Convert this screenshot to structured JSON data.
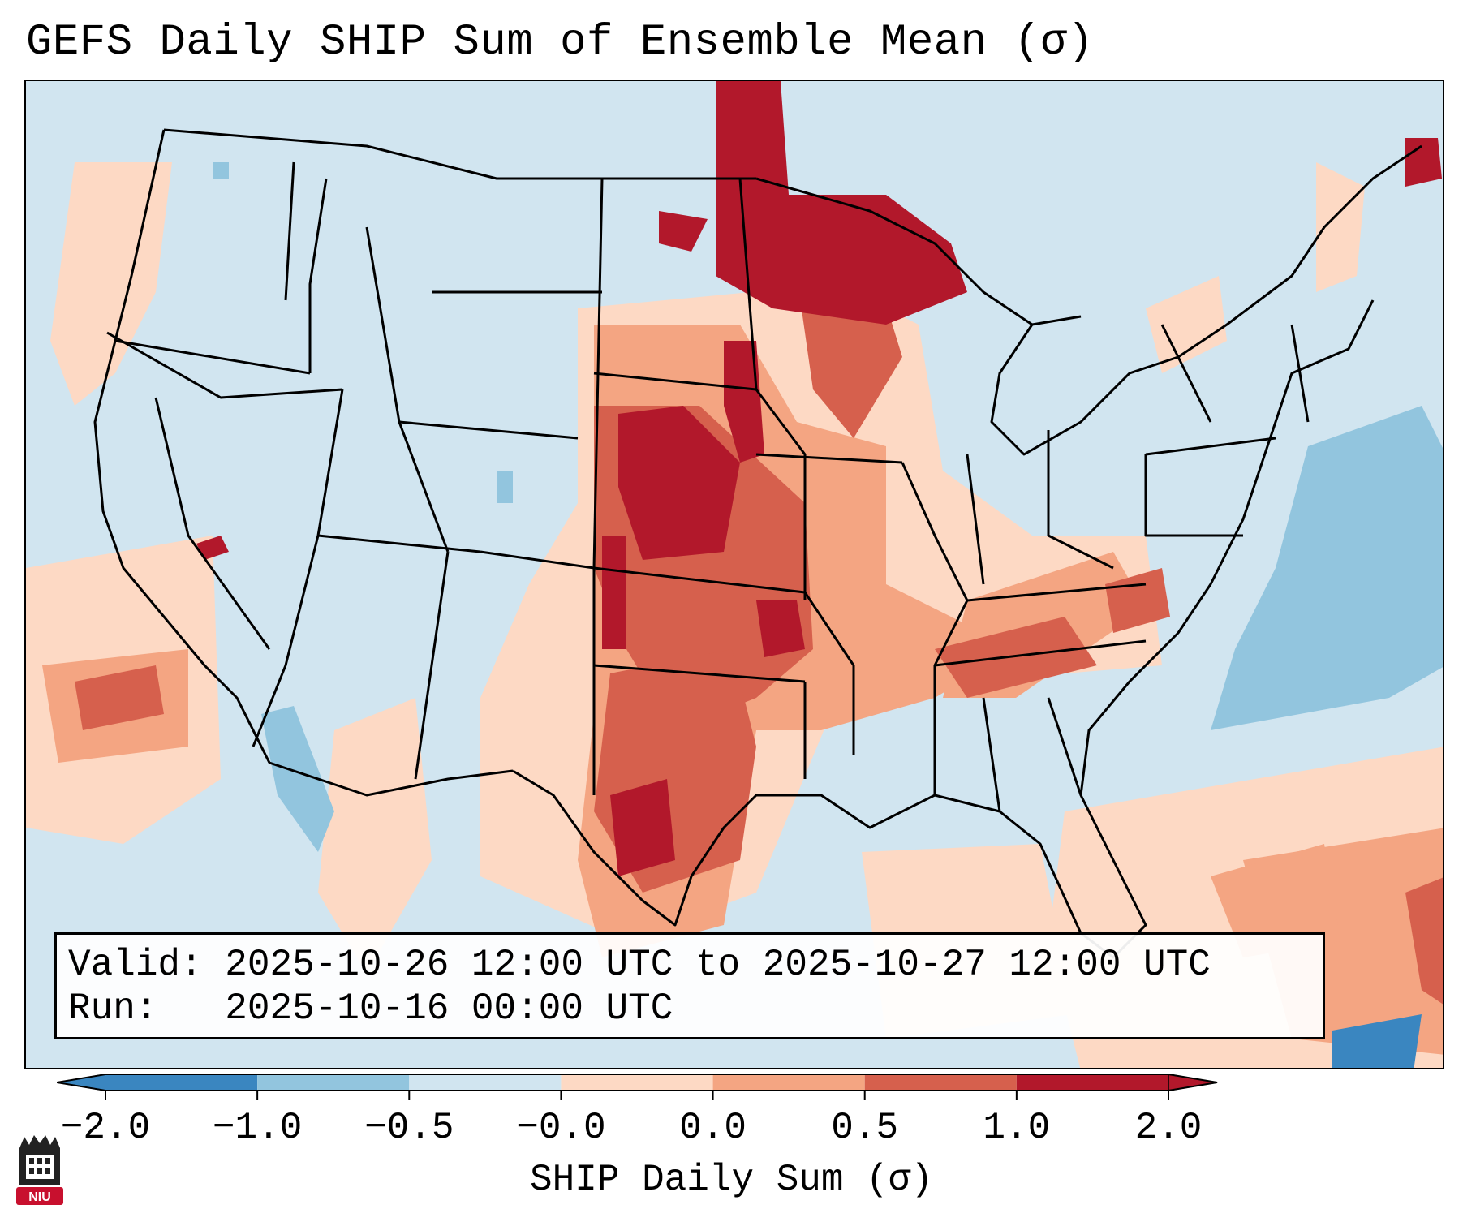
{
  "title": "GEFS Daily SHIP Sum of Ensemble Mean (σ)",
  "info": {
    "valid_prefix": "Valid:",
    "valid_range": "2025-10-26 12:00 UTC to 2025-10-27 12:00 UTC",
    "run_prefix": "Run:",
    "run_time": "2025-10-16 00:00 UTC"
  },
  "colorbar": {
    "label": "SHIP Daily Sum (σ)",
    "ticks": [
      "−2.0",
      "−1.0",
      "−0.5",
      "−0.0",
      "0.0",
      "0.5",
      "1.0",
      "2.0"
    ],
    "colors": [
      "#3a86c0",
      "#92c5de",
      "#d1e5f0",
      "#ffffff",
      "#fdd9c4",
      "#f4a582",
      "#d6604d",
      "#b2182b"
    ]
  },
  "map": {
    "region": "Contiguous United States",
    "background_color": "#d1e5f0",
    "state_line_color": "#000000"
  },
  "logo": {
    "text": "NIU",
    "icon": "niu-logo-icon",
    "color": "#c8102e"
  }
}
